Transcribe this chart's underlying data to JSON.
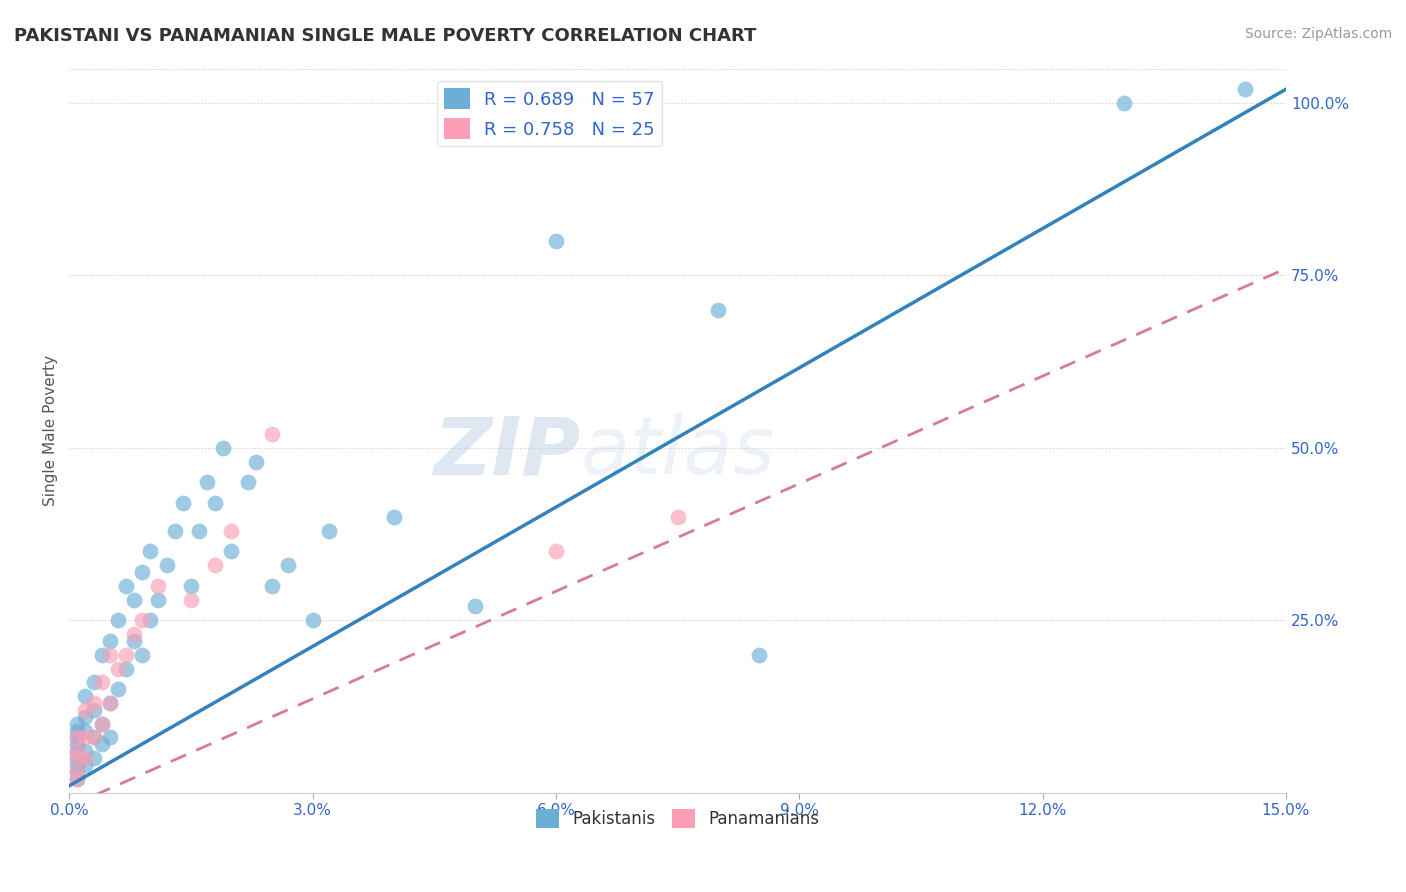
{
  "title": "PAKISTANI VS PANAMANIAN SINGLE MALE POVERTY CORRELATION CHART",
  "source": "Source: ZipAtlas.com",
  "ylabel": "Single Male Poverty",
  "xlim": [
    0.0,
    0.15
  ],
  "ylim": [
    0.0,
    1.05
  ],
  "xticks": [
    0.0,
    0.03,
    0.06,
    0.09,
    0.12,
    0.15
  ],
  "xticklabels": [
    "0.0%",
    "3.0%",
    "6.0%",
    "9.0%",
    "12.0%",
    "15.0%"
  ],
  "ytick_positions": [
    0.0,
    0.25,
    0.5,
    0.75,
    1.0
  ],
  "yticklabels": [
    "",
    "25.0%",
    "50.0%",
    "75.0%",
    "100.0%"
  ],
  "blue_color": "#6baed6",
  "pink_color": "#fa9fb5",
  "line_blue": "#3182bd",
  "line_pink": "#d06090",
  "R_blue": 0.689,
  "N_blue": 57,
  "R_pink": 0.758,
  "N_pink": 25,
  "watermark_zip": "ZIP",
  "watermark_atlas": "atlas",
  "blue_line_x0": 0.0,
  "blue_line_y0": 0.01,
  "blue_line_x1": 0.15,
  "blue_line_y1": 1.02,
  "pink_line_x0": 0.0,
  "pink_line_y0": -0.02,
  "pink_line_x1": 0.15,
  "pink_line_y1": 0.76,
  "pakistani_x": [
    0.001,
    0.001,
    0.001,
    0.001,
    0.001,
    0.001,
    0.001,
    0.001,
    0.001,
    0.002,
    0.002,
    0.002,
    0.002,
    0.002,
    0.003,
    0.003,
    0.003,
    0.003,
    0.004,
    0.004,
    0.004,
    0.005,
    0.005,
    0.005,
    0.006,
    0.006,
    0.007,
    0.007,
    0.008,
    0.008,
    0.009,
    0.009,
    0.01,
    0.01,
    0.011,
    0.012,
    0.013,
    0.014,
    0.015,
    0.016,
    0.017,
    0.018,
    0.019,
    0.02,
    0.022,
    0.023,
    0.025,
    0.027,
    0.03,
    0.032,
    0.04,
    0.05,
    0.06,
    0.08,
    0.085,
    0.13,
    0.145
  ],
  "pakistani_y": [
    0.02,
    0.03,
    0.04,
    0.05,
    0.06,
    0.07,
    0.08,
    0.09,
    0.1,
    0.04,
    0.06,
    0.09,
    0.11,
    0.14,
    0.05,
    0.08,
    0.12,
    0.16,
    0.07,
    0.1,
    0.2,
    0.08,
    0.13,
    0.22,
    0.15,
    0.25,
    0.18,
    0.3,
    0.22,
    0.28,
    0.2,
    0.32,
    0.25,
    0.35,
    0.28,
    0.33,
    0.38,
    0.42,
    0.3,
    0.38,
    0.45,
    0.42,
    0.5,
    0.35,
    0.45,
    0.48,
    0.3,
    0.33,
    0.25,
    0.38,
    0.4,
    0.27,
    0.8,
    0.7,
    0.2,
    1.0,
    1.02
  ],
  "panamanian_x": [
    0.001,
    0.001,
    0.001,
    0.001,
    0.001,
    0.002,
    0.002,
    0.002,
    0.003,
    0.003,
    0.004,
    0.004,
    0.005,
    0.005,
    0.006,
    0.007,
    0.008,
    0.009,
    0.011,
    0.015,
    0.018,
    0.02,
    0.025,
    0.06,
    0.075
  ],
  "panamanian_y": [
    0.02,
    0.03,
    0.05,
    0.06,
    0.08,
    0.05,
    0.08,
    0.12,
    0.08,
    0.13,
    0.1,
    0.16,
    0.13,
    0.2,
    0.18,
    0.2,
    0.23,
    0.25,
    0.3,
    0.28,
    0.33,
    0.38,
    0.52,
    0.35,
    0.4
  ]
}
